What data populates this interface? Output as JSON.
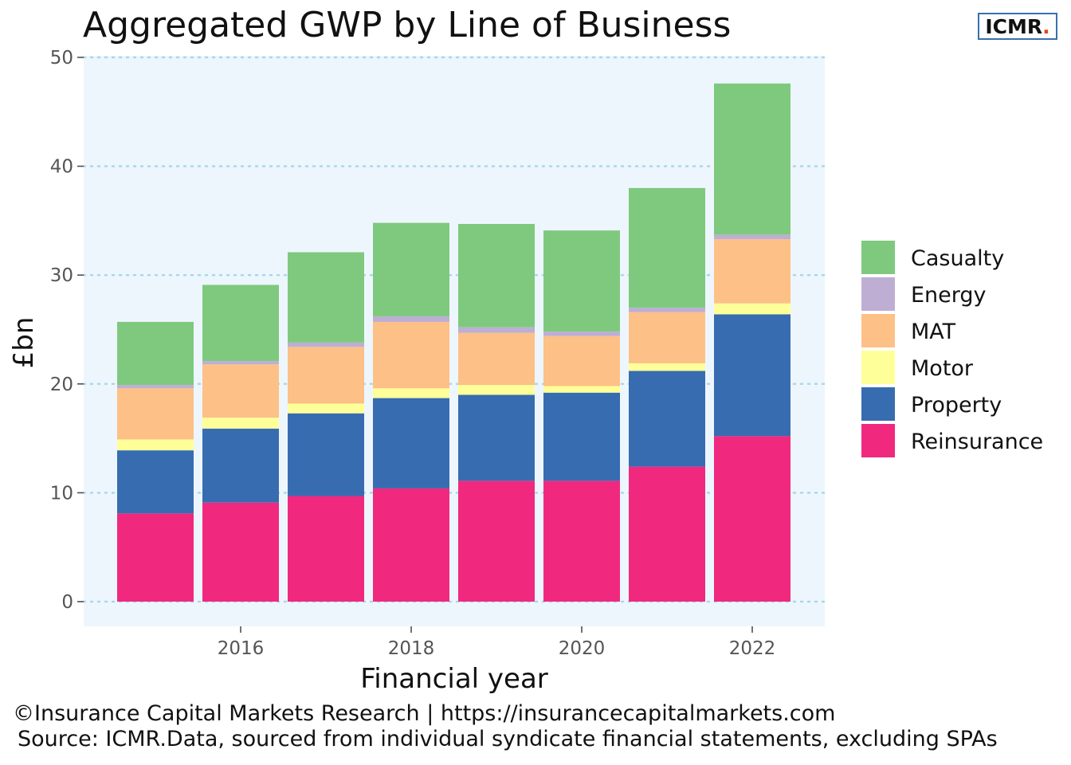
{
  "title": "Aggregated GWP by Line of Business",
  "logo": {
    "text": "ICMR",
    "dot": "."
  },
  "footer": {
    "line1": "©Insurance Capital Markets Research | https://insurancecapitalmarkets.com",
    "line2": "Source: ICMR.Data, sourced from individual syndicate financial statements, excluding SPAs"
  },
  "chart_data": {
    "type": "bar",
    "stacked": true,
    "xlabel": "Financial year",
    "ylabel": "£bn",
    "ylim": [
      0,
      50
    ],
    "y_ticks": [
      0,
      10,
      20,
      30,
      40,
      50
    ],
    "x_tick_labels": [
      "2016",
      "2018",
      "2020",
      "2022"
    ],
    "categories": [
      "2015",
      "2016",
      "2017",
      "2018",
      "2019",
      "2020",
      "2021",
      "2022"
    ],
    "legend_position": "right",
    "grid": "horizontal dotted",
    "background": "#eef6fd",
    "series": [
      {
        "name": "Reinsurance",
        "color": "#f0297f",
        "values": [
          8.1,
          9.1,
          9.7,
          10.4,
          11.1,
          11.1,
          12.4,
          15.2
        ]
      },
      {
        "name": "Property",
        "color": "#386cb0",
        "values": [
          5.8,
          6.8,
          7.6,
          8.3,
          7.9,
          8.1,
          8.8,
          11.2
        ]
      },
      {
        "name": "Motor",
        "color": "#ffff99",
        "values": [
          1.0,
          1.0,
          0.9,
          0.9,
          0.9,
          0.6,
          0.7,
          1.0
        ]
      },
      {
        "name": "MAT",
        "color": "#fdc086",
        "values": [
          4.7,
          4.9,
          5.2,
          6.1,
          4.8,
          4.6,
          4.7,
          5.9
        ]
      },
      {
        "name": "Energy",
        "color": "#beaed4",
        "values": [
          0.3,
          0.3,
          0.4,
          0.5,
          0.5,
          0.4,
          0.4,
          0.4
        ]
      },
      {
        "name": "Casualty",
        "color": "#7fc97f",
        "values": [
          5.8,
          7.0,
          8.3,
          8.6,
          9.5,
          9.3,
          11.0,
          13.9
        ]
      }
    ]
  }
}
